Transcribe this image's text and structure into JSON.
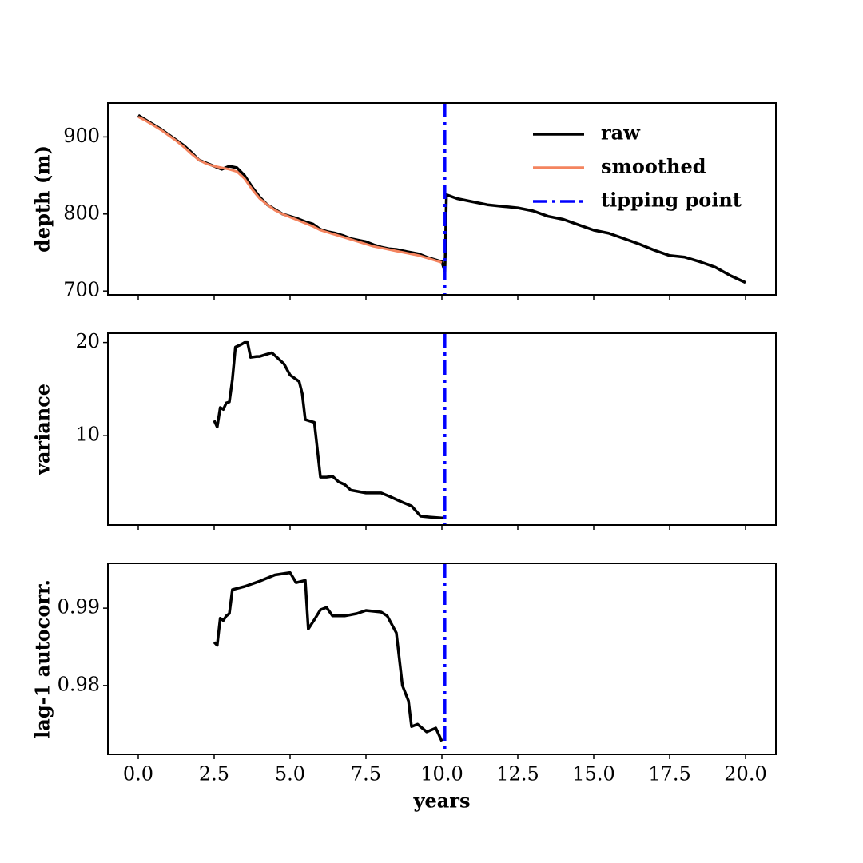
{
  "chart_data": [
    {
      "type": "line",
      "ylabel": "depth (m)",
      "legend": "upper right",
      "x": [
        0,
        0.25,
        0.5,
        0.75,
        1,
        1.25,
        1.5,
        1.75,
        2,
        2.25,
        2.5,
        2.75,
        3,
        3.25,
        3.5,
        3.75,
        4,
        4.25,
        4.5,
        4.75,
        5,
        5.25,
        5.5,
        5.75,
        6,
        6.25,
        6.5,
        6.75,
        7,
        7.25,
        7.5,
        7.75,
        8,
        8.25,
        8.5,
        8.75,
        9,
        9.25,
        9.5,
        9.75,
        10,
        10.1,
        10.15,
        10.5,
        11,
        11.5,
        12,
        12.5,
        13,
        13.5,
        14,
        14.5,
        15,
        15.5,
        16,
        16.5,
        17,
        17.5,
        18,
        18.5,
        19,
        19.5,
        20
      ],
      "series": [
        {
          "name": "raw",
          "color": "#000000",
          "values": [
            928,
            922,
            916,
            910,
            903,
            896,
            889,
            880,
            870,
            866,
            862,
            858,
            862,
            860,
            850,
            835,
            822,
            812,
            806,
            800,
            797,
            794,
            790,
            787,
            780,
            777,
            775,
            772,
            768,
            766,
            764,
            760,
            757,
            755,
            754,
            752,
            750,
            748,
            744,
            741,
            738,
            725,
            825,
            820,
            816,
            812,
            810,
            808,
            804,
            797,
            793,
            786,
            779,
            775,
            768,
            761,
            753,
            746,
            744,
            738,
            731,
            720,
            711
          ]
        },
        {
          "name": "smoothed",
          "color": "#f4845f",
          "values": [
            926,
            921,
            915,
            909,
            902,
            895,
            887,
            878,
            870,
            865,
            862,
            860,
            858,
            855,
            846,
            832,
            820,
            812,
            805,
            800,
            796,
            792,
            788,
            784,
            779,
            776,
            773,
            770,
            767,
            764,
            761,
            758,
            756,
            754,
            752,
            750,
            748,
            746,
            743,
            740,
            737,
            null,
            null,
            null,
            null,
            null,
            null,
            null,
            null,
            null,
            null,
            null,
            null,
            null,
            null,
            null,
            null,
            null,
            null,
            null,
            null,
            null,
            null
          ]
        }
      ],
      "vline": {
        "name": "tipping point",
        "x": 10.1,
        "color": "#0000ff"
      },
      "xlim": [
        -1,
        21
      ],
      "ylim": [
        695,
        944
      ],
      "yticks": [
        700,
        800,
        900
      ]
    },
    {
      "type": "line",
      "ylabel": "variance",
      "x": [
        2.5,
        2.6,
        2.7,
        2.8,
        2.9,
        3.0,
        3.1,
        3.2,
        3.4,
        3.5,
        3.6,
        3.7,
        3.9,
        4.0,
        4.2,
        4.4,
        4.6,
        4.8,
        5.0,
        5.3,
        5.4,
        5.5,
        5.8,
        6.0,
        6.2,
        6.4,
        6.6,
        6.8,
        7.0,
        7.5,
        8.0,
        8.3,
        8.7,
        9.0,
        9.3,
        9.6,
        10.0,
        10.1
      ],
      "series": [
        {
          "color": "#000000",
          "values": [
            11.6,
            10.9,
            13.0,
            12.8,
            13.5,
            13.6,
            16,
            19.5,
            19.8,
            20.0,
            20.0,
            18.4,
            18.5,
            18.5,
            18.7,
            18.9,
            18.3,
            17.7,
            16.5,
            15.8,
            14.5,
            11.7,
            11.4,
            5.5,
            5.5,
            5.6,
            5.0,
            4.7,
            4.1,
            3.8,
            3.8,
            3.4,
            2.8,
            2.4,
            1.3,
            1.2,
            1.1,
            1.1
          ]
        }
      ],
      "vline": {
        "x": 10.1,
        "color": "#0000ff"
      },
      "xlim": [
        -1,
        21
      ],
      "ylim": [
        0.35,
        21.0
      ],
      "yticks": [
        10,
        20
      ]
    },
    {
      "type": "line",
      "ylabel": "lag-1 autocorr.",
      "xlabel": "years",
      "x": [
        2.5,
        2.6,
        2.7,
        2.8,
        2.9,
        3.0,
        3.1,
        3.5,
        4.0,
        4.5,
        5.0,
        5.2,
        5.5,
        5.6,
        5.8,
        6.0,
        6.2,
        6.4,
        6.8,
        7.2,
        7.5,
        8.0,
        8.2,
        8.5,
        8.7,
        8.9,
        9.0,
        9.2,
        9.5,
        9.8,
        10.0
      ],
      "series": [
        {
          "color": "#000000",
          "values": [
            0.9856,
            0.9852,
            0.9887,
            0.9884,
            0.989,
            0.9893,
            0.9924,
            0.9928,
            0.9935,
            0.9943,
            0.9946,
            0.9933,
            0.9936,
            0.9873,
            0.9885,
            0.9898,
            0.9901,
            0.989,
            0.989,
            0.9893,
            0.9897,
            0.9895,
            0.989,
            0.9868,
            0.98,
            0.978,
            0.9747,
            0.975,
            0.974,
            0.9745,
            0.9728
          ]
        }
      ],
      "vline": {
        "x": 10.1,
        "color": "#0000ff"
      },
      "xlim": [
        -1,
        21
      ],
      "ylim": [
        0.9711,
        0.9958
      ],
      "yticks": [
        0.98,
        0.99
      ],
      "xticks": [
        {
          "value": 0,
          "label": "0.0"
        },
        2.5,
        {
          "value": 5,
          "label": "5.0"
        },
        7.5,
        {
          "value": 10,
          "label": "10.0"
        },
        12.5,
        {
          "value": 15,
          "label": "15.0"
        },
        17.5,
        {
          "value": 20,
          "label": "20.0"
        }
      ]
    }
  ]
}
